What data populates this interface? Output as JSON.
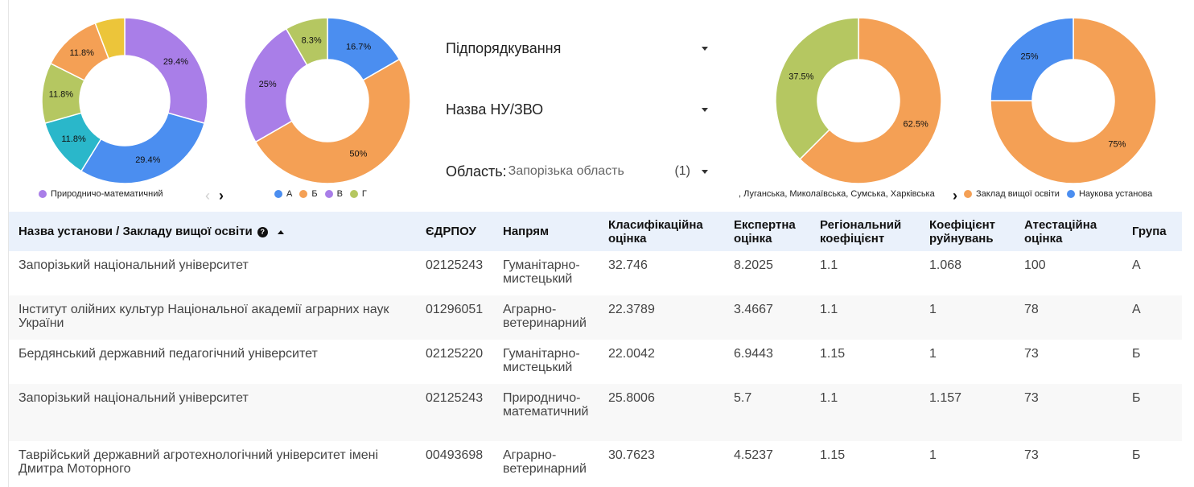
{
  "charts": {
    "chart1": {
      "slices": [
        {
          "value": 29.4,
          "color": "#a97ee8",
          "label": "29.4%"
        },
        {
          "value": 29.4,
          "color": "#4b8ef0",
          "label": "29.4%"
        },
        {
          "value": 11.8,
          "color": "#2ab7ca",
          "label": "11.8%"
        },
        {
          "value": 11.8,
          "color": "#b5c761",
          "label": "11.8%"
        },
        {
          "value": 11.8,
          "color": "#f4a055",
          "label": "11.8%"
        },
        {
          "value": 5.8,
          "color": "#ecc53a",
          "label": ""
        }
      ],
      "legend": [
        {
          "name": "Природничо-математичний",
          "color": "#a97ee8"
        }
      ]
    },
    "chart2": {
      "slices": [
        {
          "value": 16.7,
          "color": "#4b8ef0",
          "label": "16.7%"
        },
        {
          "value": 50,
          "color": "#f4a055",
          "label": "50%"
        },
        {
          "value": 25,
          "color": "#a97ee8",
          "label": "25%"
        },
        {
          "value": 8.3,
          "color": "#b5c761",
          "label": "8.3%"
        }
      ],
      "legend": [
        {
          "name": "А",
          "color": "#4b8ef0"
        },
        {
          "name": "Б",
          "color": "#f4a055"
        },
        {
          "name": "В",
          "color": "#a97ee8"
        },
        {
          "name": "Г",
          "color": "#b5c761"
        }
      ]
    },
    "chart3": {
      "slices": [
        {
          "value": 62.5,
          "color": "#f4a055",
          "label": "62.5%"
        },
        {
          "value": 37.5,
          "color": "#b5c761",
          "label": "37.5%"
        }
      ],
      "legend_text": ", Луганська, Миколаївська, Сумська, Харківська"
    },
    "chart4": {
      "slices": [
        {
          "value": 75,
          "color": "#f4a055",
          "label": "75%"
        },
        {
          "value": 25,
          "color": "#4b8ef0",
          "label": "25%"
        }
      ],
      "legend": [
        {
          "name": "Заклад вищої освіти",
          "color": "#f4a055"
        },
        {
          "name": "Наукова установа",
          "color": "#4b8ef0"
        }
      ]
    }
  },
  "nav": {
    "prev_icon": "‹",
    "next_icon": "›"
  },
  "filters": {
    "subordination": {
      "label": "Підпорядкування"
    },
    "institution": {
      "label": "Назва НУ/ЗВО"
    },
    "region": {
      "label": "Область",
      "value": "Запорізька область",
      "count": "(1)"
    }
  },
  "table": {
    "headers": {
      "name": "Назва установи / Закладу вищої освіти",
      "info_icon": "?",
      "edrpou": "ЄДРПОУ",
      "direction": "Напрям",
      "class_score": "Класифікаційна оцінка",
      "expert_score": "Експертна оцінка",
      "regional": "Регіональний коефіцієнт",
      "destruction": "Коефіцієнт руйнувань",
      "attest": "Атестаційна оцінка",
      "group": "Група"
    },
    "rows": [
      {
        "name": "Запорізький національний університет",
        "edrpou": "02125243",
        "direction": "Гуманітарно-мистецький",
        "class_score": "32.746",
        "expert_score": "8.2025",
        "regional": "1.1",
        "destruction": "1.068",
        "attest": "100",
        "group": "А"
      },
      {
        "name": "Інститут олійних культур Національної академії аграрних наук України",
        "edrpou": "01296051",
        "direction": "Аграрно-ветеринарний",
        "class_score": "22.3789",
        "expert_score": "3.4667",
        "regional": "1.1",
        "destruction": "1",
        "attest": "78",
        "group": "А"
      },
      {
        "name": "Бердянський державний педагогічний університет",
        "edrpou": "02125220",
        "direction": "Гуманітарно-мистецький",
        "class_score": "22.0042",
        "expert_score": "6.9443",
        "regional": "1.15",
        "destruction": "1",
        "attest": "73",
        "group": "Б"
      },
      {
        "name": "Запорізький національний університет",
        "edrpou": "02125243",
        "direction": "Природничо-математичний",
        "class_score": "25.8006",
        "expert_score": "5.7",
        "regional": "1.1",
        "destruction": "1.157",
        "attest": "73",
        "group": "Б"
      },
      {
        "name": "Таврійський державний агротехнологічний університет імені Дмитра Моторного",
        "edrpou": "00493698",
        "direction": "Аграрно-ветеринарний",
        "class_score": "30.7623",
        "expert_score": "4.5237",
        "regional": "1.15",
        "destruction": "1",
        "attest": "73",
        "group": "Б"
      }
    ]
  }
}
